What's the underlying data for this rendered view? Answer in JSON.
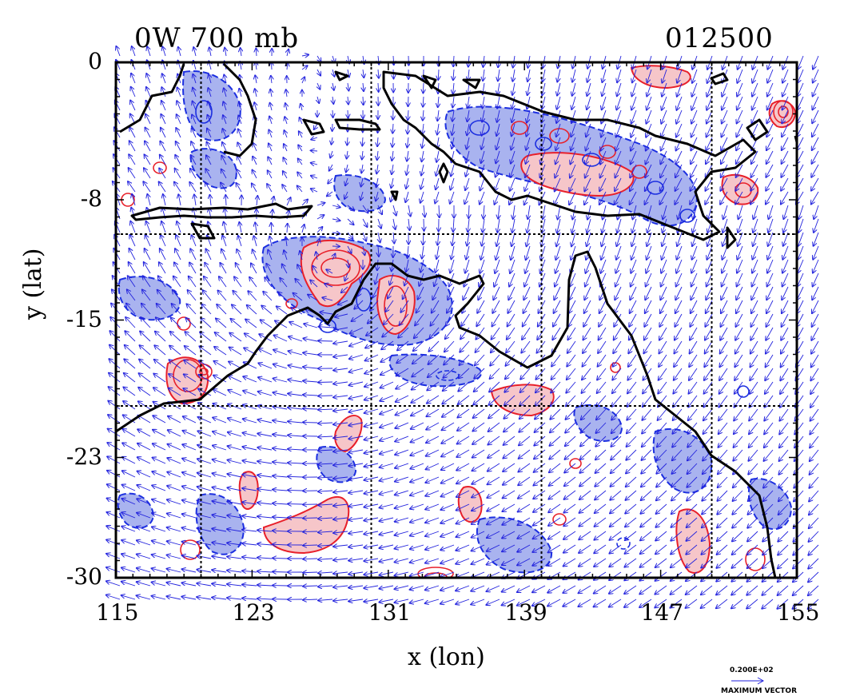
{
  "header": {
    "left_title": "0W 700 mb",
    "right_title": "012500"
  },
  "axes": {
    "xlabel": "x (lon)",
    "ylabel": "y (lat)",
    "x_ticks": [
      "115",
      "123",
      "131",
      "139",
      "147",
      "155"
    ],
    "y_ticks": [
      "0",
      "-8",
      "-15",
      "-23",
      "-30"
    ]
  },
  "vector_legend": {
    "value": "0.200E+02",
    "label": "MAXIMUM VECTOR"
  },
  "colors": {
    "coast": "#000000",
    "vectors": "#2222dd",
    "positive_contour": "#e8202a",
    "positive_fill": "#f6c6c9",
    "negative_contour": "#1c2fe0",
    "negative_fill": "#a9b3ef",
    "grid": "#000000"
  },
  "chart_data": {
    "type": "map",
    "xlim": [
      115,
      155
    ],
    "ylim": [
      -30,
      0
    ],
    "x_ticks": [
      115,
      123,
      131,
      139,
      147,
      155
    ],
    "y_ticks": [
      0,
      -8,
      -15,
      -23,
      -30
    ],
    "grid_lines_x": [
      120,
      130,
      140,
      150
    ],
    "grid_lines_y": [
      -10,
      -20
    ],
    "grid": true,
    "layers": [
      "wind vectors",
      "positive contours (red, shaded)",
      "negative contours (blue, dashed, shaded)",
      "coastlines"
    ]
  }
}
